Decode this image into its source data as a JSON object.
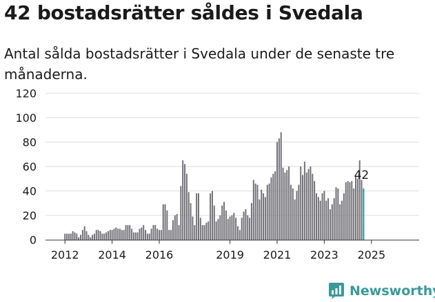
{
  "chart_data": {
    "type": "bar",
    "title": "42 bostadsrätter såldes i Svedala",
    "subtitle": "Antal sålda bostadsrätter i Svedala under de senaste tre månaderna.",
    "x_start": "2012-01",
    "x_tick_labels": [
      "2012",
      "2014",
      "2016",
      "2019",
      "2021",
      "2023",
      "2025"
    ],
    "y_tick_labels": [
      "0",
      "20",
      "40",
      "60",
      "80",
      "100",
      "120"
    ],
    "ylim": [
      0,
      120
    ],
    "grid": true,
    "values": [
      5,
      5,
      5,
      5,
      7,
      6,
      5,
      2,
      4,
      8,
      11,
      7,
      4,
      2,
      4,
      5,
      8,
      8,
      7,
      5,
      5,
      6,
      7,
      8,
      8,
      9,
      10,
      9,
      9,
      8,
      8,
      12,
      12,
      12,
      9,
      6,
      6,
      6,
      9,
      10,
      12,
      8,
      5,
      5,
      9,
      12,
      12,
      9,
      8,
      8,
      29,
      29,
      24,
      8,
      8,
      16,
      20,
      21,
      12,
      44,
      65,
      62,
      54,
      39,
      30,
      19,
      12,
      38,
      38,
      18,
      12,
      12,
      14,
      15,
      38,
      40,
      28,
      15,
      17,
      20,
      28,
      31,
      24,
      17,
      19,
      20,
      22,
      18,
      11,
      8,
      18,
      23,
      25,
      20,
      18,
      30,
      49,
      46,
      45,
      33,
      41,
      38,
      35,
      45,
      46,
      51,
      54,
      56,
      80,
      83,
      88,
      59,
      55,
      57,
      60,
      45,
      42,
      33,
      40,
      45,
      60,
      53,
      64,
      55,
      58,
      60,
      54,
      48,
      38,
      35,
      32,
      38,
      40,
      32,
      34,
      25,
      29,
      34,
      43,
      42,
      29,
      32,
      38,
      47,
      48,
      47,
      48,
      42,
      52,
      50,
      65,
      49,
      42
    ],
    "bar_color": "#737278",
    "highlight_color": "#1c9a93",
    "last_value_label": "42"
  },
  "logo": {
    "text": "Newsworthy"
  }
}
